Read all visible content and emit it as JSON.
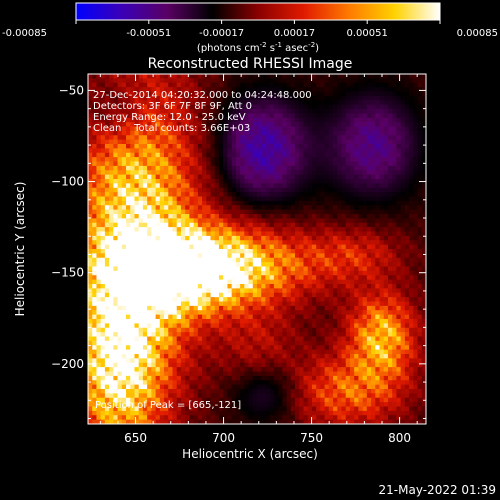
{
  "colorbar": {
    "tick_labels": [
      "-0.00085",
      "-0.00051",
      "-0.00017",
      "0.00017",
      "0.00051",
      "0.00085"
    ],
    "tick_values": [
      -0.00085,
      -0.00051,
      -0.00017,
      0.00017,
      0.00051,
      0.00085
    ],
    "range": [
      -0.00085,
      0.00085
    ],
    "unit_main": "(photons cm",
    "unit_exp1": "-2",
    "unit_mid": " s",
    "unit_exp2": "-1",
    "unit_end": " asec",
    "unit_exp3": "-2",
    "unit_close": ")",
    "colors": [
      "#0000ff",
      "#3a00b8",
      "#5a0064",
      "#000000",
      "#8a0000",
      "#e01a00",
      "#ff7a00",
      "#ffd200",
      "#ffffff"
    ]
  },
  "footer": {
    "timestamp": "21-May-2022 01:39"
  },
  "chart_data": {
    "type": "heatmap",
    "title": "Reconstructed RHESSI Image",
    "xlabel": "Heliocentric X (arcsec)",
    "ylabel": "Heliocentric Y (arcsec)",
    "xlim": [
      623,
      815
    ],
    "ylim": [
      -233,
      -41
    ],
    "xticks": [
      650,
      700,
      750,
      800
    ],
    "yticks": [
      -50,
      -100,
      -150,
      -200
    ],
    "annotations": [
      "27-Dec-2014 04:20:32.000 to 04:24:48.000",
      "Detectors: 3F 6F 7F 8F 9F, Att 0",
      "Energy Range: 12.0 - 25.0 keV",
      "Clean    Total counts: 3.66E+03"
    ],
    "peak_label": "Position of Peak = [665,-121]",
    "peak": [
      665,
      -121
    ],
    "sources": [
      {
        "x": 650,
        "y": -122,
        "amp": 1.0,
        "sx": 24,
        "sy": 55
      },
      {
        "x": 700,
        "y": -146,
        "amp": 0.85,
        "sx": 38,
        "sy": 14
      },
      {
        "x": 680,
        "y": -150,
        "amp": 0.8,
        "sx": 25,
        "sy": 16
      },
      {
        "x": 640,
        "y": -200,
        "amp": 0.95,
        "sx": 18,
        "sy": 34
      },
      {
        "x": 790,
        "y": -185,
        "amp": 0.82,
        "sx": 13,
        "sy": 16
      },
      {
        "x": 770,
        "y": -215,
        "amp": 0.55,
        "sx": 22,
        "sy": 14
      },
      {
        "x": 775,
        "y": -140,
        "amp": 0.3,
        "sx": 18,
        "sy": 10
      },
      {
        "x": 720,
        "y": -190,
        "amp": 0.25,
        "sx": 16,
        "sy": 16
      }
    ],
    "negatives": [
      {
        "x": 722,
        "y": -82,
        "amp": 0.55,
        "sx": 18,
        "sy": 20
      },
      {
        "x": 785,
        "y": -80,
        "amp": 0.45,
        "sx": 18,
        "sy": 20
      },
      {
        "x": 640,
        "y": -62,
        "amp": 0.35,
        "sx": 14,
        "sy": 14
      },
      {
        "x": 725,
        "y": -215,
        "amp": 0.3,
        "sx": 14,
        "sy": 12
      }
    ]
  }
}
